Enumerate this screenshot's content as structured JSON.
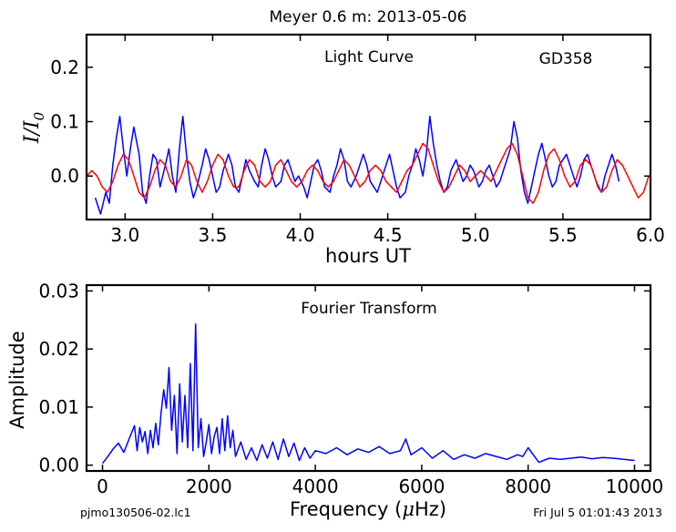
{
  "header": {
    "title": "Meyer 0.6 m:  2013-05-06"
  },
  "footer": {
    "filename": "pjmo130506-02.lc1",
    "timestamp": "Fri Jul  5 01:01:43 2013"
  },
  "chart_data": [
    {
      "type": "line",
      "title": "Light Curve",
      "annotation": "GD358",
      "xlabel": "hours UT",
      "ylabel": "I/I0",
      "ylabel_parts": {
        "base": "I/I",
        "sub": "0"
      },
      "xlim": [
        2.78,
        6.0
      ],
      "ylim": [
        -0.08,
        0.26
      ],
      "xticks": [
        3.0,
        3.5,
        4.0,
        4.5,
        5.0,
        5.5,
        6.0
      ],
      "xtick_labels": [
        "3.0",
        "3.5",
        "4.0",
        "4.5",
        "5.0",
        "5.5",
        "6.0"
      ],
      "yticks": [
        0.0,
        0.1,
        0.2
      ],
      "ytick_labels": [
        "0.0",
        "0.1",
        "0.2"
      ],
      "grid": false,
      "series": [
        {
          "color": "#0000ff",
          "x": [
            2.83,
            2.86,
            2.89,
            2.91,
            2.93,
            2.95,
            2.97,
            2.99,
            3.01,
            3.03,
            3.05,
            3.08,
            3.1,
            3.12,
            3.14,
            3.16,
            3.18,
            3.2,
            3.23,
            3.25,
            3.27,
            3.29,
            3.31,
            3.33,
            3.35,
            3.37,
            3.39,
            3.41,
            3.44,
            3.46,
            3.48,
            3.5,
            3.52,
            3.54,
            3.56,
            3.59,
            3.61,
            3.63,
            3.65,
            3.67,
            3.69,
            3.71,
            3.74,
            3.76,
            3.78,
            3.8,
            3.82,
            3.84,
            3.86,
            3.89,
            3.91,
            3.93,
            3.95,
            3.97,
            3.99,
            4.02,
            4.04,
            4.06,
            4.08,
            4.1,
            4.12,
            4.14,
            4.17,
            4.19,
            4.21,
            4.23,
            4.25,
            4.27,
            4.29,
            4.32,
            4.34,
            4.36,
            4.38,
            4.4,
            4.42,
            4.44,
            4.47,
            4.49,
            4.51,
            4.53,
            4.55,
            4.57,
            4.6,
            4.62,
            4.64,
            4.66,
            4.68,
            4.7,
            4.72,
            4.74,
            4.76,
            4.78,
            4.8,
            4.82,
            4.84,
            4.86,
            4.89,
            4.91,
            4.93,
            4.95,
            4.97,
            4.99,
            5.02,
            5.04,
            5.06,
            5.08,
            5.1,
            5.12,
            5.14,
            5.16,
            5.18,
            5.2,
            5.22,
            5.24,
            5.26,
            5.28,
            5.3,
            5.32,
            5.34,
            5.36,
            5.38,
            5.4,
            5.42,
            5.44,
            5.46,
            5.48,
            5.5,
            5.52,
            5.54,
            5.56,
            5.58,
            5.6,
            5.62,
            5.64,
            5.66,
            5.68,
            5.7,
            5.72,
            5.74,
            5.76,
            5.78,
            5.8,
            5.82
          ],
          "y": [
            -0.04,
            -0.07,
            -0.03,
            -0.05,
            0.02,
            0.07,
            0.11,
            0.05,
            0.0,
            0.05,
            0.09,
            0.04,
            -0.03,
            -0.05,
            0.0,
            0.04,
            0.03,
            -0.02,
            0.02,
            0.05,
            0.0,
            -0.03,
            0.05,
            0.11,
            0.04,
            -0.01,
            -0.04,
            -0.02,
            0.02,
            0.05,
            0.03,
            0.0,
            -0.03,
            -0.02,
            0.01,
            0.04,
            0.02,
            -0.02,
            -0.03,
            0.0,
            0.03,
            0.01,
            -0.01,
            -0.02,
            0.02,
            0.05,
            0.03,
            0.0,
            -0.02,
            -0.01,
            0.02,
            0.03,
            0.01,
            -0.01,
            0.0,
            -0.02,
            -0.04,
            -0.01,
            0.02,
            0.03,
            0.01,
            -0.02,
            -0.03,
            0.0,
            0.02,
            0.05,
            0.03,
            -0.01,
            -0.02,
            0.0,
            0.02,
            0.04,
            0.02,
            -0.01,
            -0.02,
            -0.03,
            0.0,
            0.02,
            0.04,
            0.01,
            -0.02,
            -0.04,
            -0.03,
            0.0,
            0.02,
            0.05,
            0.03,
            0.0,
            0.04,
            0.11,
            0.06,
            0.02,
            -0.01,
            -0.03,
            -0.02,
            0.01,
            0.03,
            0.01,
            -0.01,
            0.0,
            0.02,
            0.01,
            -0.02,
            -0.01,
            0.01,
            0.02,
            0.0,
            -0.02,
            -0.01,
            0.01,
            0.03,
            0.05,
            0.1,
            0.07,
            0.01,
            -0.03,
            -0.05,
            -0.02,
            0.01,
            0.04,
            0.06,
            0.03,
            0.0,
            -0.02,
            -0.01,
            0.02,
            0.03,
            0.04,
            0.02,
            0.0,
            -0.02,
            0.0,
            0.03,
            0.04,
            0.02,
            0.0,
            -0.02,
            -0.03,
            0.0,
            0.02,
            0.04,
            0.02,
            -0.01
          ]
        },
        {
          "color": "#ff0000",
          "x": [
            2.78,
            2.81,
            2.84,
            2.87,
            2.9,
            2.93,
            2.96,
            2.99,
            3.02,
            3.05,
            3.08,
            3.11,
            3.14,
            3.17,
            3.2,
            3.23,
            3.26,
            3.29,
            3.32,
            3.35,
            3.38,
            3.41,
            3.44,
            3.47,
            3.5,
            3.53,
            3.56,
            3.59,
            3.62,
            3.65,
            3.68,
            3.71,
            3.74,
            3.77,
            3.8,
            3.83,
            3.86,
            3.89,
            3.92,
            3.95,
            3.98,
            4.01,
            4.04,
            4.07,
            4.1,
            4.13,
            4.16,
            4.19,
            4.22,
            4.25,
            4.28,
            4.31,
            4.34,
            4.37,
            4.4,
            4.43,
            4.46,
            4.49,
            4.52,
            4.55,
            4.58,
            4.61,
            4.64,
            4.67,
            4.7,
            4.73,
            4.76,
            4.79,
            4.82,
            4.85,
            4.88,
            4.91,
            4.94,
            4.97,
            5.0,
            5.03,
            5.06,
            5.09,
            5.12,
            5.15,
            5.18,
            5.21,
            5.24,
            5.27,
            5.3,
            5.33,
            5.36,
            5.39,
            5.42,
            5.45,
            5.48,
            5.51,
            5.54,
            5.57,
            5.6,
            5.63,
            5.66,
            5.69,
            5.72,
            5.75,
            5.78,
            5.81,
            5.84,
            5.87,
            5.9,
            5.93,
            5.96,
            5.99
          ],
          "y": [
            0.0,
            0.01,
            0.0,
            -0.02,
            -0.03,
            -0.01,
            0.02,
            0.04,
            0.03,
            0.0,
            -0.03,
            -0.04,
            -0.02,
            0.01,
            0.03,
            0.02,
            -0.01,
            -0.02,
            0.0,
            0.03,
            0.02,
            -0.01,
            -0.03,
            -0.01,
            0.02,
            0.04,
            0.03,
            0.0,
            -0.02,
            -0.02,
            0.01,
            0.03,
            0.02,
            -0.01,
            -0.02,
            -0.01,
            0.02,
            0.03,
            0.01,
            -0.01,
            -0.02,
            -0.01,
            0.01,
            0.02,
            0.01,
            -0.01,
            -0.02,
            -0.01,
            0.01,
            0.03,
            0.02,
            0.0,
            -0.02,
            -0.01,
            0.01,
            0.02,
            0.01,
            -0.01,
            -0.02,
            -0.03,
            -0.01,
            0.01,
            0.02,
            0.04,
            0.06,
            0.05,
            0.02,
            -0.01,
            -0.03,
            -0.02,
            0.0,
            0.02,
            0.01,
            -0.01,
            0.0,
            0.01,
            0.0,
            -0.01,
            0.01,
            0.03,
            0.05,
            0.06,
            0.04,
            0.0,
            -0.04,
            -0.05,
            -0.03,
            0.01,
            0.04,
            0.05,
            0.03,
            0.0,
            -0.02,
            -0.01,
            0.02,
            0.03,
            0.02,
            -0.01,
            -0.03,
            -0.02,
            0.01,
            0.03,
            0.02,
            0.0,
            -0.02,
            -0.04,
            -0.03,
            0.0
          ]
        }
      ]
    },
    {
      "type": "line",
      "title": "Fourier Transform",
      "xlabel": "Frequency (μHz)",
      "xlabel_parts": {
        "pre": "Frequency (",
        "mu": "μ",
        "post": "Hz)"
      },
      "ylabel": "Amplitude",
      "xlim": [
        -300,
        10300
      ],
      "ylim": [
        -0.001,
        0.031
      ],
      "xticks": [
        0,
        2000,
        4000,
        6000,
        8000,
        10000
      ],
      "xtick_labels": [
        "0",
        "2000",
        "4000",
        "6000",
        "8000",
        "10000"
      ],
      "yticks": [
        0.0,
        0.01,
        0.02,
        0.03
      ],
      "ytick_labels": [
        "0.00",
        "0.01",
        "0.02",
        "0.03"
      ],
      "grid": false,
      "series": [
        {
          "color": "#0000ff",
          "x": [
            0,
            100,
            200,
            300,
            400,
            500,
            600,
            650,
            700,
            750,
            800,
            850,
            900,
            950,
            1000,
            1050,
            1100,
            1150,
            1200,
            1250,
            1300,
            1350,
            1400,
            1450,
            1500,
            1550,
            1600,
            1650,
            1700,
            1750,
            1800,
            1850,
            1900,
            1950,
            2000,
            2050,
            2100,
            2150,
            2200,
            2250,
            2300,
            2350,
            2400,
            2450,
            2500,
            2600,
            2700,
            2800,
            2900,
            3000,
            3100,
            3200,
            3300,
            3400,
            3500,
            3600,
            3700,
            3800,
            3900,
            4000,
            4200,
            4400,
            4600,
            4800,
            5000,
            5200,
            5400,
            5600,
            5700,
            5800,
            6000,
            6200,
            6400,
            6600,
            6800,
            7000,
            7200,
            7400,
            7600,
            7800,
            7900,
            8000,
            8200,
            8400,
            8600,
            8800,
            9000,
            9200,
            9400,
            9600,
            9800,
            10000
          ],
          "y": [
            0.0003,
            0.0015,
            0.0028,
            0.0038,
            0.0022,
            0.0045,
            0.0068,
            0.0025,
            0.0065,
            0.004,
            0.0058,
            0.002,
            0.006,
            0.003,
            0.0072,
            0.0035,
            0.009,
            0.013,
            0.0098,
            0.0168,
            0.006,
            0.012,
            0.002,
            0.014,
            0.004,
            0.012,
            0.003,
            0.0175,
            0.0025,
            0.0243,
            0.003,
            0.008,
            0.0015,
            0.004,
            0.007,
            0.002,
            0.005,
            0.0065,
            0.002,
            0.008,
            0.0025,
            0.0085,
            0.003,
            0.006,
            0.0015,
            0.004,
            0.001,
            0.003,
            0.0008,
            0.0035,
            0.0012,
            0.004,
            0.001,
            0.0045,
            0.0015,
            0.0038,
            0.0008,
            0.003,
            0.0012,
            0.0025,
            0.002,
            0.003,
            0.0018,
            0.0028,
            0.0022,
            0.0032,
            0.002,
            0.0025,
            0.0045,
            0.0018,
            0.003,
            0.0012,
            0.0025,
            0.001,
            0.0018,
            0.0012,
            0.002,
            0.0015,
            0.001,
            0.0018,
            0.0015,
            0.003,
            0.0005,
            0.0012,
            0.001,
            0.0012,
            0.0014,
            0.0011,
            0.0013,
            0.0012,
            0.001,
            0.0008
          ]
        }
      ]
    }
  ]
}
